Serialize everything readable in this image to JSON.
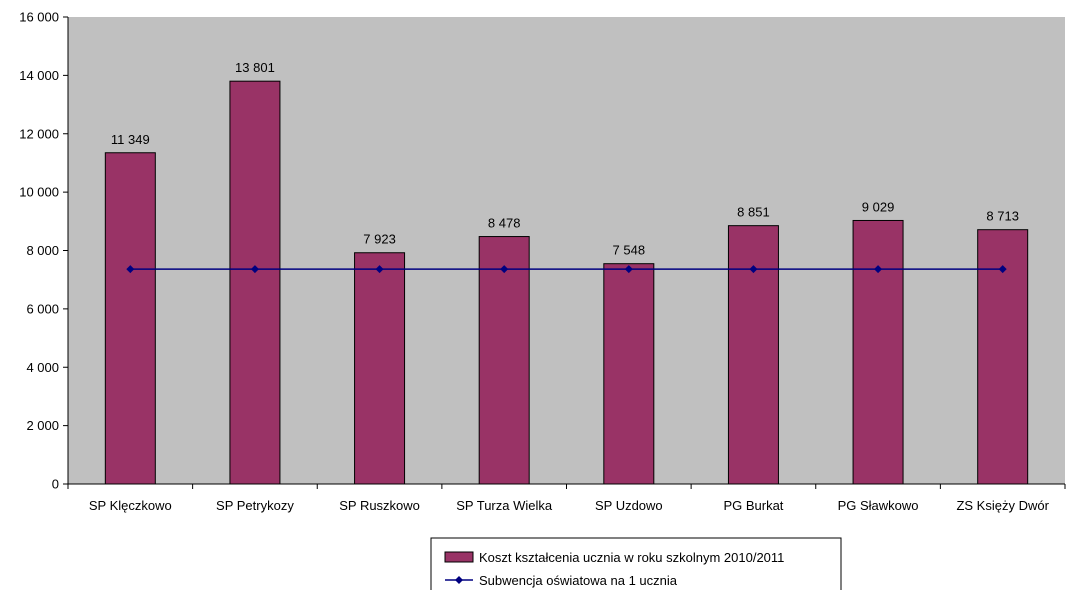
{
  "chart_data": {
    "type": "bar",
    "categories": [
      "SP Klęczkowo",
      "SP Petrykozy",
      "SP Ruszkowo",
      "SP Turza Wielka",
      "SP Uzdowo",
      "PG Burkat",
      "PG Sławkowo",
      "ZS Księży Dwór"
    ],
    "series": [
      {
        "name": "Koszt kształcenia ucznia w roku szkolnym 2010/2011",
        "type": "bar",
        "color": "#993366",
        "values": [
          11349,
          13801,
          7923,
          8478,
          7548,
          8851,
          9029,
          8713
        ],
        "labels": [
          "11 349",
          "13 801",
          "7 923",
          "8 478",
          "7 548",
          "8 851",
          "9 029",
          "8 713"
        ]
      },
      {
        "name": "Subwencja oświatowa na 1 ucznia",
        "type": "line",
        "color": "#000080",
        "values": [
          7360,
          7360,
          7360,
          7360,
          7360,
          7360,
          7360,
          7360
        ]
      }
    ],
    "ylim": [
      0,
      16000
    ],
    "yticks": [
      0,
      2000,
      4000,
      6000,
      8000,
      10000,
      12000,
      14000,
      16000
    ],
    "ytick_labels": [
      "0",
      "2 000",
      "4 000",
      "6 000",
      "8 000",
      "10 000",
      "12 000",
      "14 000",
      "16 000"
    ],
    "grid": false,
    "plot_background": "#c0c0c0",
    "legend_position": "bottom"
  }
}
